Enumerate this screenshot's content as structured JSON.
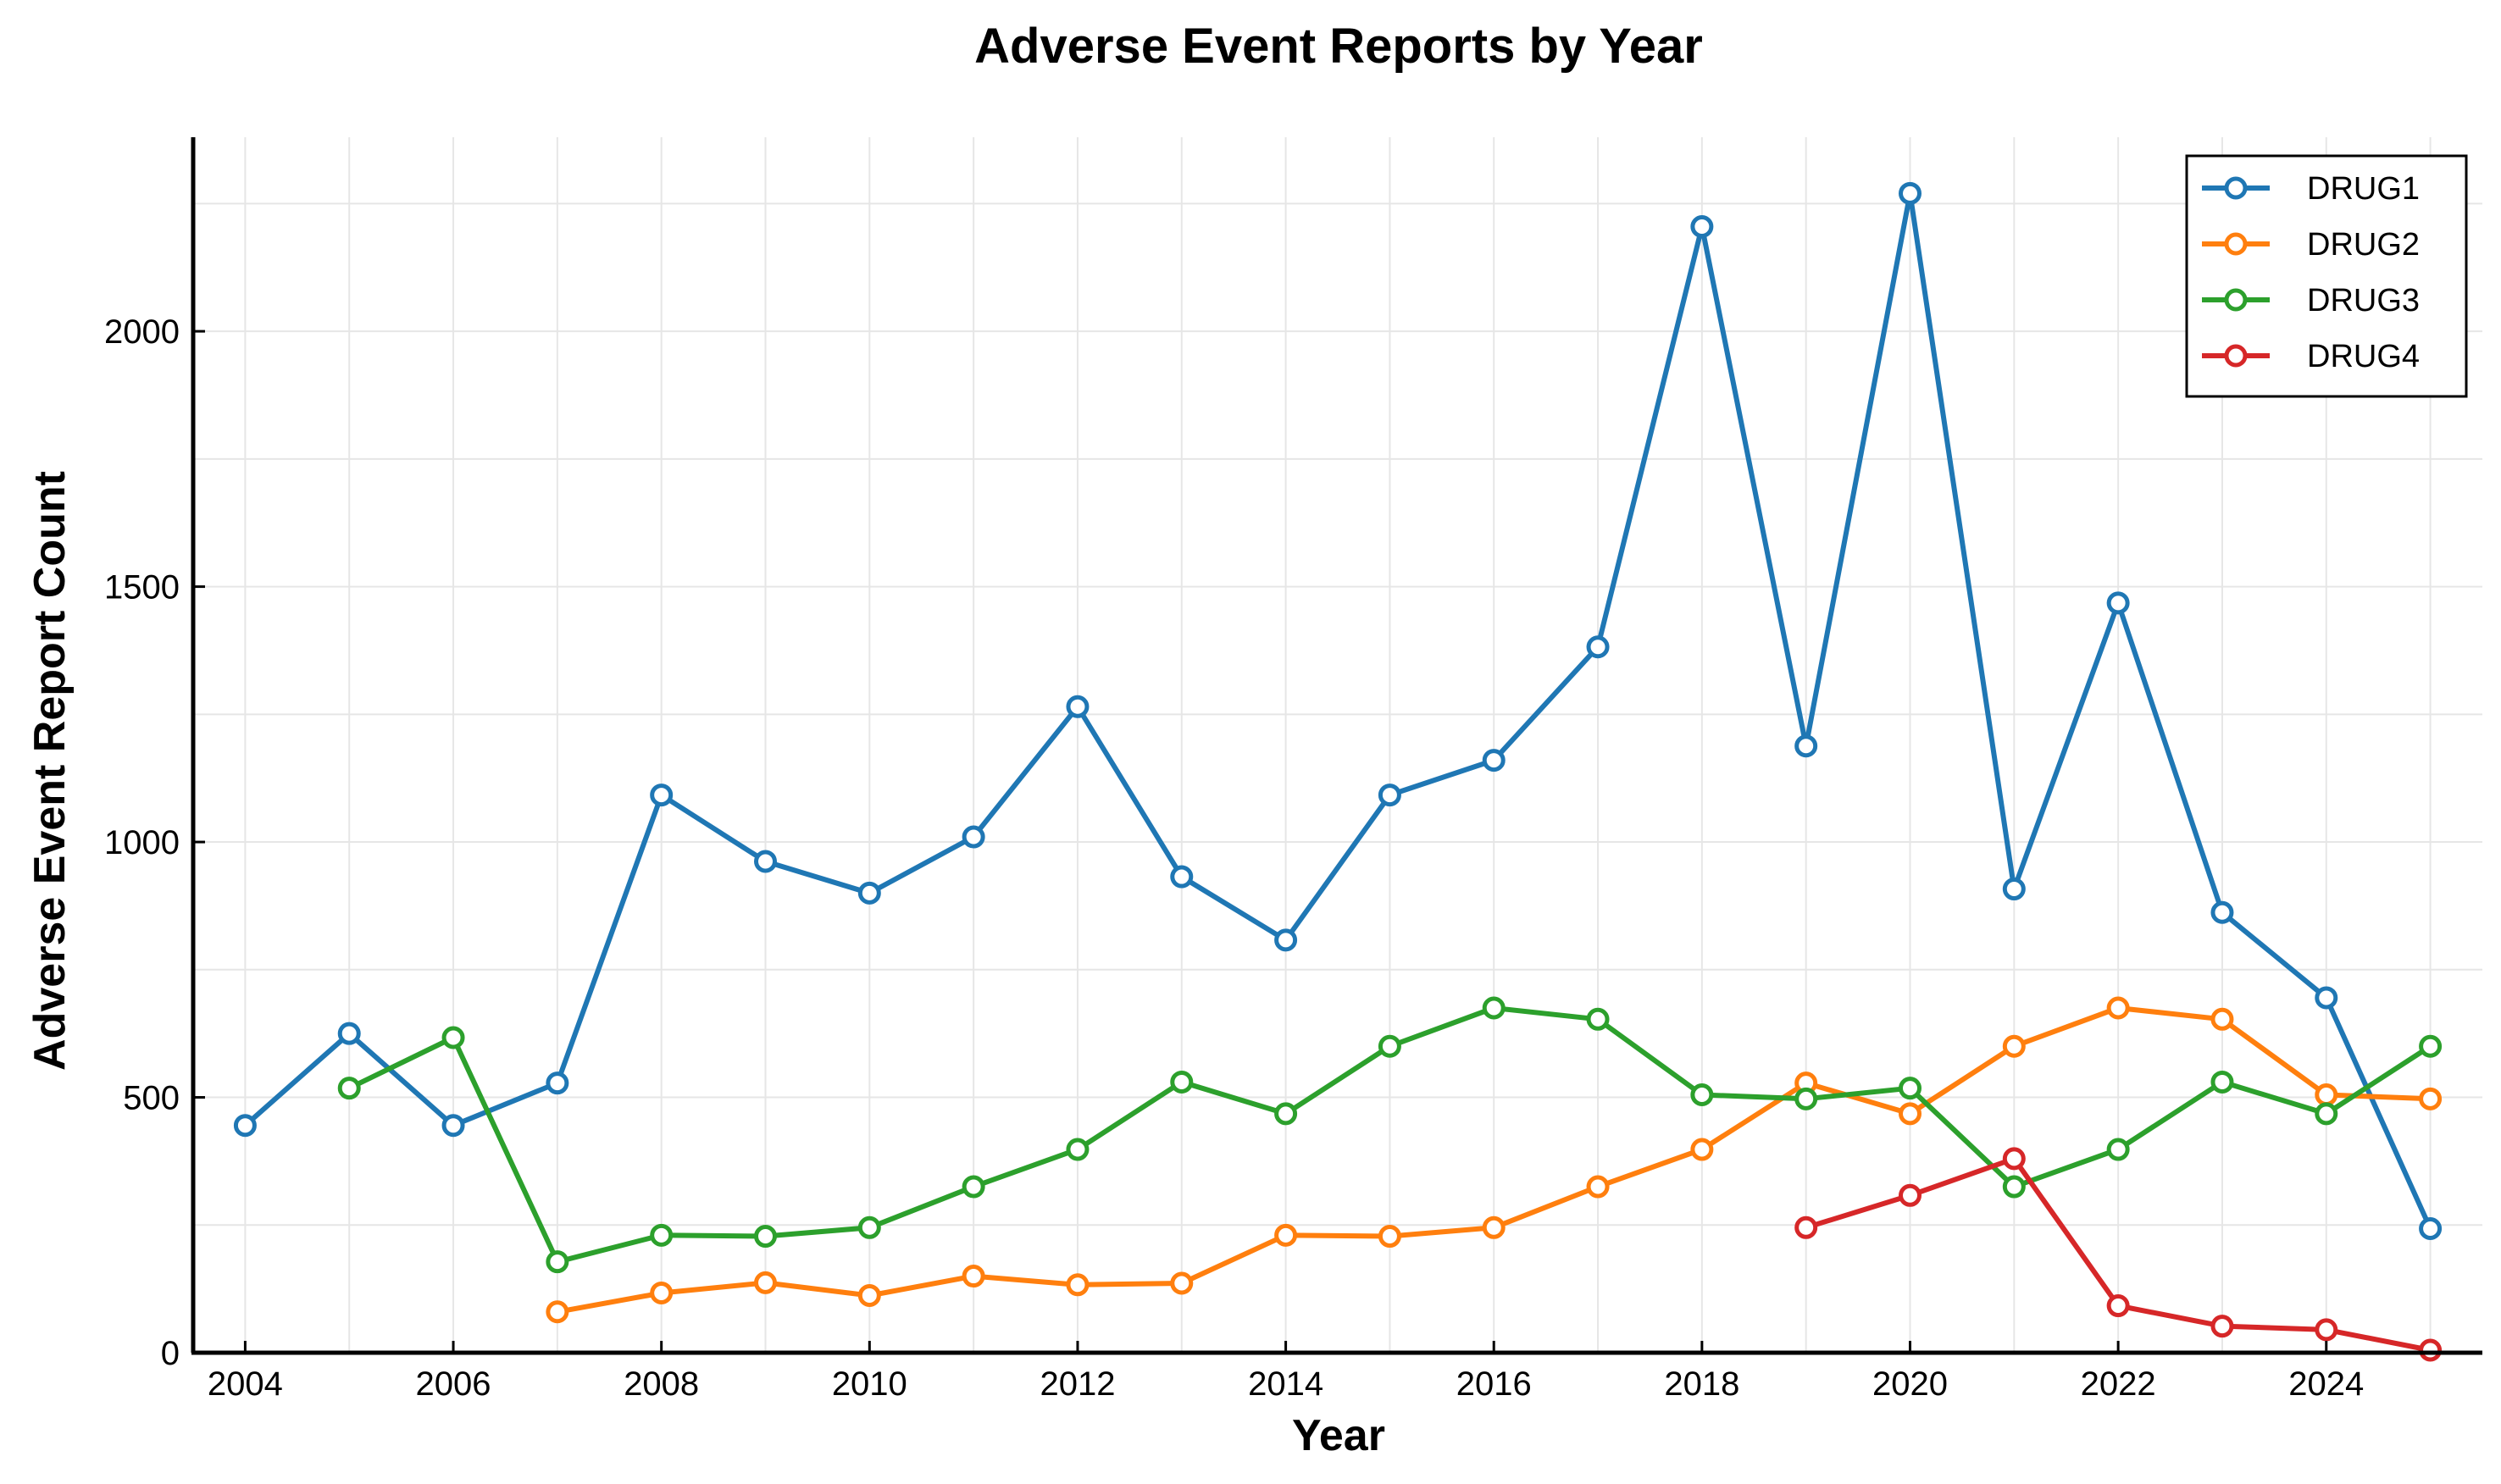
{
  "chart_data": {
    "type": "line",
    "title": "Adverse Event Reports by Year",
    "xlabel": "Year",
    "ylabel": "Adverse Event Report Count",
    "xlim": [
      2003.5,
      2025.5
    ],
    "ylim": [
      0,
      2380
    ],
    "xticks": [
      2004,
      2006,
      2008,
      2010,
      2012,
      2014,
      2016,
      2018,
      2020,
      2022,
      2024
    ],
    "xtick_labels": [
      "2004",
      "2006",
      "2008",
      "2010",
      "2012",
      "2014",
      "2016",
      "2018",
      "2020",
      "2022",
      "2024"
    ],
    "yticks": [
      0,
      500,
      1000,
      1500,
      2000
    ],
    "ytick_labels": [
      "0",
      "500",
      "1000",
      "1500",
      "2000"
    ],
    "grid": true,
    "legend_position": "top-right",
    "series": [
      {
        "name": "DRUG1",
        "color": "#1f77b4",
        "x": [
          2004,
          2005,
          2006,
          2007,
          2008,
          2009,
          2010,
          2011,
          2012,
          2013,
          2014,
          2015,
          2016,
          2017,
          2018,
          2019,
          2020,
          2021,
          2022,
          2023,
          2024,
          2025
        ],
        "y": [
          445,
          625,
          445,
          528,
          1092,
          962,
          900,
          1010,
          1265,
          932,
          808,
          1092,
          1160,
          1382,
          2205,
          1188,
          2270,
          908,
          1468,
          862,
          695,
          243
        ]
      },
      {
        "name": "DRUG2",
        "color": "#ff7f0e",
        "x": [
          2007,
          2008,
          2009,
          2010,
          2011,
          2012,
          2013,
          2014,
          2015,
          2016,
          2017,
          2018,
          2019,
          2020,
          2021,
          2022,
          2023,
          2024,
          2025
        ],
        "y": [
          80,
          117,
          137,
          112,
          150,
          133,
          136,
          230,
          228,
          245,
          325,
          398,
          528,
          468,
          600,
          675,
          653,
          505,
          497
        ]
      },
      {
        "name": "DRUG3",
        "color": "#2ca02c",
        "x": [
          2005,
          2006,
          2007,
          2008,
          2009,
          2010,
          2011,
          2012,
          2013,
          2014,
          2015,
          2016,
          2017,
          2018,
          2019,
          2020,
          2021,
          2022,
          2023,
          2024,
          2025
        ],
        "y": [
          518,
          617,
          178,
          230,
          228,
          245,
          325,
          398,
          530,
          468,
          600,
          675,
          653,
          505,
          497,
          518,
          325,
          398,
          530,
          468,
          600
        ]
      },
      {
        "name": "DRUG4",
        "color": "#d62728",
        "x": [
          2019,
          2020,
          2021,
          2022,
          2023,
          2024,
          2025
        ],
        "y": [
          245,
          308,
          380,
          92,
          52,
          45,
          5
        ]
      }
    ]
  }
}
